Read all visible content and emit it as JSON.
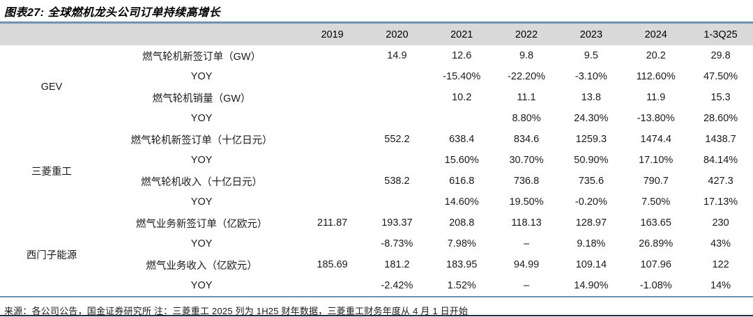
{
  "title": "图表27: 全球燃机龙头公司订单持续高增长",
  "footer_note": "来源：各公司公告，国金证券研究所 注：三菱重工 2025 列为 1H25 财年数据，三菱重工财务年度从 4 月 1 日开始",
  "colors": {
    "rule_blue": "#7d9db8",
    "header_bg": "#d9d9d9",
    "bottom_line": "#1f3045"
  },
  "chart_data": {
    "type": "table",
    "title": "图表27: 全球燃机龙头公司订单持续高增长",
    "year_headers": [
      "2019",
      "2020",
      "2021",
      "2022",
      "2023",
      "2024",
      "1-3Q25"
    ],
    "groups": [
      {
        "company": "GEV",
        "rows": [
          {
            "metric": "燃气轮机新签订单（GW）",
            "values": [
              "",
              "14.9",
              "12.6",
              "9.8",
              "9.5",
              "20.2",
              "29.8"
            ]
          },
          {
            "metric": "YOY",
            "values": [
              "",
              "",
              "-15.40%",
              "-22.20%",
              "-3.10%",
              "112.60%",
              "47.50%"
            ]
          },
          {
            "metric": "燃气轮机销量（GW）",
            "values": [
              "",
              "",
              "10.2",
              "11.1",
              "13.8",
              "11.9",
              "15.3"
            ]
          },
          {
            "metric": "YOY",
            "values": [
              "",
              "",
              "",
              "8.80%",
              "24.30%",
              "-13.80%",
              "28.60%"
            ]
          }
        ]
      },
      {
        "company": "三菱重工",
        "rows": [
          {
            "metric": "燃气轮机新签订单（十亿日元）",
            "values": [
              "",
              "552.2",
              "638.4",
              "834.6",
              "1259.3",
              "1474.4",
              "1438.7"
            ]
          },
          {
            "metric": "YOY",
            "values": [
              "",
              "",
              "15.60%",
              "30.70%",
              "50.90%",
              "17.10%",
              "84.14%"
            ]
          },
          {
            "metric": "燃气轮机收入（十亿日元）",
            "values": [
              "",
              "538.2",
              "616.8",
              "736.8",
              "735.6",
              "790.7",
              "427.3"
            ]
          },
          {
            "metric": "YOY",
            "values": [
              "",
              "",
              "14.60%",
              "19.50%",
              "-0.20%",
              "7.50%",
              "17.13%"
            ]
          }
        ]
      },
      {
        "company": "西门子能源",
        "rows": [
          {
            "metric": "燃气业务新签订单（亿欧元）",
            "values": [
              "211.87",
              "193.37",
              "208.8",
              "118.13",
              "128.97",
              "163.65",
              "230"
            ]
          },
          {
            "metric": "YOY",
            "values": [
              "",
              "-8.73%",
              "7.98%",
              "–",
              "9.18%",
              "26.89%",
              "43%"
            ]
          },
          {
            "metric": "燃气业务收入（亿欧元）",
            "values": [
              "185.69",
              "181.2",
              "183.95",
              "94.99",
              "109.14",
              "107.96",
              "122"
            ]
          },
          {
            "metric": "YOY",
            "values": [
              "",
              "-2.42%",
              "1.52%",
              "–",
              "14.90%",
              "-1.08%",
              "14%"
            ]
          }
        ]
      }
    ]
  }
}
